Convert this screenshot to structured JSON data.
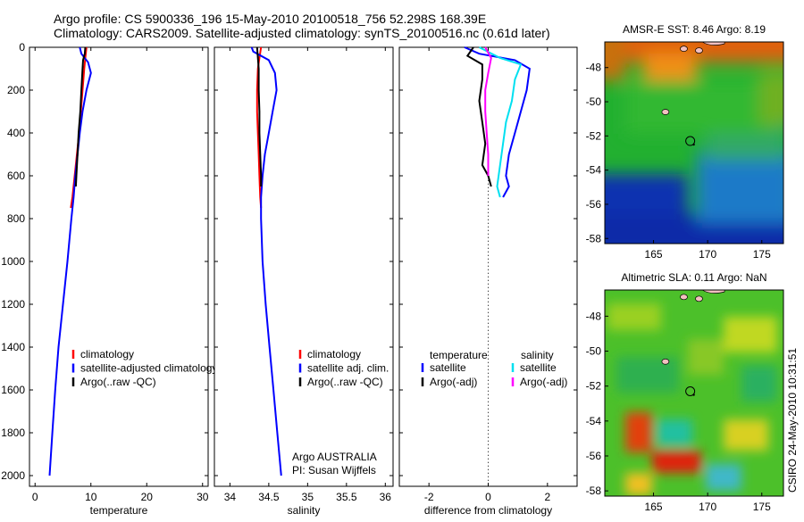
{
  "header": {
    "line1": "Argo profile: CS 5900336_196 15-May-2010 20100518_756 52.298S 168.39E",
    "line2": "Climatology: CARS2009. Satellite-adjusted climatology: synTS_20100516.nc (0.61d later)"
  },
  "colors": {
    "climatology": "#ff0000",
    "satellite": "#0000ff",
    "argo": "#000000",
    "salinity_satellite": "#00e0f0",
    "salinity_argo": "#ff00ff"
  },
  "chart_data": [
    {
      "type": "line",
      "panel": "temperature",
      "xlabel": "temperature",
      "ylabel": "",
      "xlim": [
        -1,
        31
      ],
      "ylim": [
        2050,
        0
      ],
      "xticks": [
        0,
        10,
        20,
        30
      ],
      "yticks": [
        0,
        200,
        400,
        600,
        800,
        1000,
        1200,
        1400,
        1600,
        1800,
        2000
      ],
      "legend": [
        "climatology",
        "satellite-adjusted climatology",
        "Argo(..raw -QC)"
      ],
      "series": [
        {
          "name": "climatology",
          "color": "#ff0000",
          "points": [
            [
              9.2,
              0
            ],
            [
              9.0,
              50
            ],
            [
              8.8,
              100
            ],
            [
              8.5,
              200
            ],
            [
              8.2,
              300
            ],
            [
              7.9,
              400
            ],
            [
              7.5,
              500
            ],
            [
              7.1,
              600
            ],
            [
              6.7,
              700
            ],
            [
              6.4,
              750
            ]
          ]
        },
        {
          "name": "satellite-adjusted climatology",
          "color": "#0000ff",
          "points": [
            [
              8.0,
              0
            ],
            [
              8.3,
              30
            ],
            [
              9.5,
              70
            ],
            [
              10.0,
              120
            ],
            [
              9.2,
              200
            ],
            [
              8.5,
              300
            ],
            [
              8.0,
              400
            ],
            [
              7.6,
              500
            ],
            [
              7.2,
              600
            ],
            [
              6.9,
              700
            ],
            [
              6.5,
              800
            ],
            [
              5.8,
              1000
            ],
            [
              5.0,
              1200
            ],
            [
              4.2,
              1400
            ],
            [
              3.6,
              1600
            ],
            [
              3.1,
              1800
            ],
            [
              2.6,
              2000
            ]
          ]
        },
        {
          "name": "Argo(..raw -QC)",
          "color": "#000000",
          "points": [
            [
              9.0,
              0
            ],
            [
              8.9,
              30
            ],
            [
              8.6,
              60
            ],
            [
              8.5,
              100
            ],
            [
              8.3,
              200
            ],
            [
              8.1,
              300
            ],
            [
              7.8,
              400
            ],
            [
              7.6,
              500
            ],
            [
              7.4,
              600
            ],
            [
              7.3,
              650
            ]
          ]
        }
      ]
    },
    {
      "type": "line",
      "panel": "salinity",
      "xlabel": "salinity",
      "xlim": [
        33.8,
        36.1
      ],
      "ylim": [
        2050,
        0
      ],
      "xticks": [
        34,
        34.5,
        35,
        35.5,
        36
      ],
      "legend": [
        "climatology",
        "satellite adj. clim.",
        "Argo(..raw -QC)"
      ],
      "series": [
        {
          "name": "climatology",
          "color": "#ff0000",
          "points": [
            [
              34.4,
              0
            ],
            [
              34.38,
              50
            ],
            [
              34.36,
              100
            ],
            [
              34.35,
              200
            ],
            [
              34.35,
              300
            ],
            [
              34.36,
              400
            ],
            [
              34.37,
              500
            ],
            [
              34.38,
              600
            ],
            [
              34.39,
              700
            ],
            [
              34.4,
              750
            ]
          ]
        },
        {
          "name": "satellite adj. clim.",
          "color": "#0000ff",
          "points": [
            [
              34.28,
              0
            ],
            [
              34.3,
              20
            ],
            [
              34.5,
              60
            ],
            [
              34.58,
              120
            ],
            [
              34.6,
              200
            ],
            [
              34.55,
              300
            ],
            [
              34.5,
              400
            ],
            [
              34.45,
              500
            ],
            [
              34.42,
              600
            ],
            [
              34.4,
              700
            ],
            [
              34.4,
              800
            ],
            [
              34.42,
              1000
            ],
            [
              34.46,
              1200
            ],
            [
              34.51,
              1400
            ],
            [
              34.56,
              1600
            ],
            [
              34.61,
              1800
            ],
            [
              34.66,
              2000
            ]
          ]
        },
        {
          "name": "Argo(..raw -QC)",
          "color": "#000000",
          "points": [
            [
              34.35,
              0
            ],
            [
              34.36,
              50
            ],
            [
              34.37,
              100
            ],
            [
              34.37,
              200
            ],
            [
              34.38,
              300
            ],
            [
              34.38,
              400
            ],
            [
              34.39,
              500
            ],
            [
              34.4,
              600
            ],
            [
              34.4,
              650
            ]
          ]
        }
      ],
      "annotation": [
        "Argo AUSTRALIA",
        "PI: Susan Wijffels"
      ]
    },
    {
      "type": "line",
      "panel": "difference",
      "xlabel": "difference from climatology",
      "xlim": [
        -3,
        3
      ],
      "ylim": [
        2050,
        0
      ],
      "xticks": [
        -2,
        0,
        2
      ],
      "legend_headers": [
        "temperature",
        "salinity"
      ],
      "legend": [
        "satellite",
        "Argo(-adj)",
        "satellite",
        "Argo(-adj)"
      ],
      "series": [
        {
          "name": "satellite",
          "group": "temperature",
          "color": "#0000ff",
          "points": [
            [
              -0.8,
              0
            ],
            [
              -0.3,
              30
            ],
            [
              0.9,
              60
            ],
            [
              1.4,
              100
            ],
            [
              1.3,
              200
            ],
            [
              1.1,
              300
            ],
            [
              0.9,
              400
            ],
            [
              0.7,
              500
            ],
            [
              0.6,
              600
            ],
            [
              0.7,
              650
            ],
            [
              0.5,
              700
            ]
          ]
        },
        {
          "name": "Argo(-adj)",
          "group": "temperature",
          "color": "#000000",
          "points": [
            [
              -0.5,
              0
            ],
            [
              -0.7,
              40
            ],
            [
              -0.2,
              80
            ],
            [
              -0.2,
              150
            ],
            [
              -0.3,
              250
            ],
            [
              -0.2,
              350
            ],
            [
              -0.1,
              450
            ],
            [
              -0.2,
              550
            ],
            [
              0.0,
              600
            ],
            [
              0.1,
              650
            ]
          ]
        },
        {
          "name": "satellite",
          "group": "salinity",
          "color": "#00e0f0",
          "points": [
            [
              -0.3,
              0
            ],
            [
              0.4,
              50
            ],
            [
              1.1,
              80
            ],
            [
              0.9,
              150
            ],
            [
              0.8,
              250
            ],
            [
              0.6,
              350
            ],
            [
              0.5,
              450
            ],
            [
              0.4,
              550
            ],
            [
              0.3,
              650
            ],
            [
              0.4,
              700
            ]
          ]
        },
        {
          "name": "Argo(-adj)",
          "group": "salinity",
          "color": "#ff00ff",
          "points": [
            [
              -0.1,
              0
            ],
            [
              0.1,
              50
            ],
            [
              0.0,
              120
            ],
            [
              -0.1,
              200
            ],
            [
              -0.1,
              300
            ],
            [
              -0.05,
              400
            ],
            [
              0.0,
              500
            ],
            [
              0.0,
              600
            ]
          ]
        }
      ]
    },
    {
      "type": "heatmap",
      "panel": "sst",
      "title": "AMSR-E SST: 8.46 Argo: 8.19",
      "xlim": [
        160.5,
        177
      ],
      "ylim": [
        -58.3,
        -46.5
      ],
      "xticks": [
        165,
        170,
        175
      ],
      "yticks": [
        -48,
        -50,
        -52,
        -54,
        -56,
        -58
      ],
      "marker": {
        "lon": 168.39,
        "lat": -52.298
      }
    },
    {
      "type": "heatmap",
      "panel": "sla",
      "title": "Altimetric SLA: 0.11 Argo: NaN",
      "xlim": [
        160.5,
        177
      ],
      "ylim": [
        -58.3,
        -46.5
      ],
      "xticks": [
        165,
        170,
        175
      ],
      "yticks": [
        -48,
        -50,
        -52,
        -54,
        -56,
        -58
      ],
      "marker": {
        "lon": 168.39,
        "lat": -52.298
      }
    }
  ],
  "credit": "CSIRO 24-May-2010 10:31:51"
}
